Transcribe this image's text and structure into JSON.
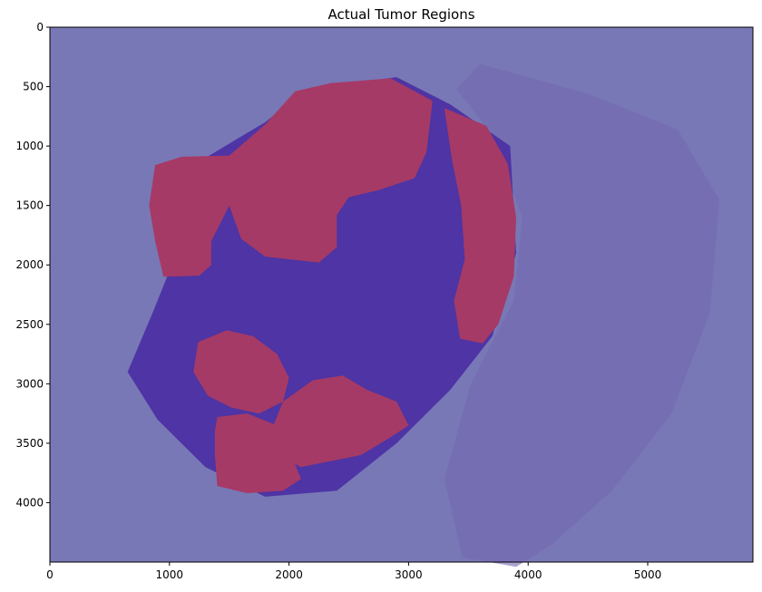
{
  "chart_data": {
    "type": "heatmap",
    "title": "Actual Tumor Regions",
    "xlabel": "",
    "ylabel": "",
    "xlim": [
      0,
      5880
    ],
    "ylim": [
      4500,
      0
    ],
    "x_ticks": [
      0,
      1000,
      2000,
      3000,
      4000,
      5000
    ],
    "y_ticks": [
      0,
      500,
      1000,
      1500,
      2000,
      2500,
      3000,
      3500,
      4000
    ],
    "grid": false,
    "legend": "none",
    "layers": [
      {
        "name": "background mask",
        "value": 0,
        "color": "#7878b6"
      },
      {
        "name": "tissue",
        "value": 0,
        "color": "#4b2fa3"
      },
      {
        "name": "tumor mask",
        "value": 1,
        "color": "#a63a66"
      }
    ]
  }
}
